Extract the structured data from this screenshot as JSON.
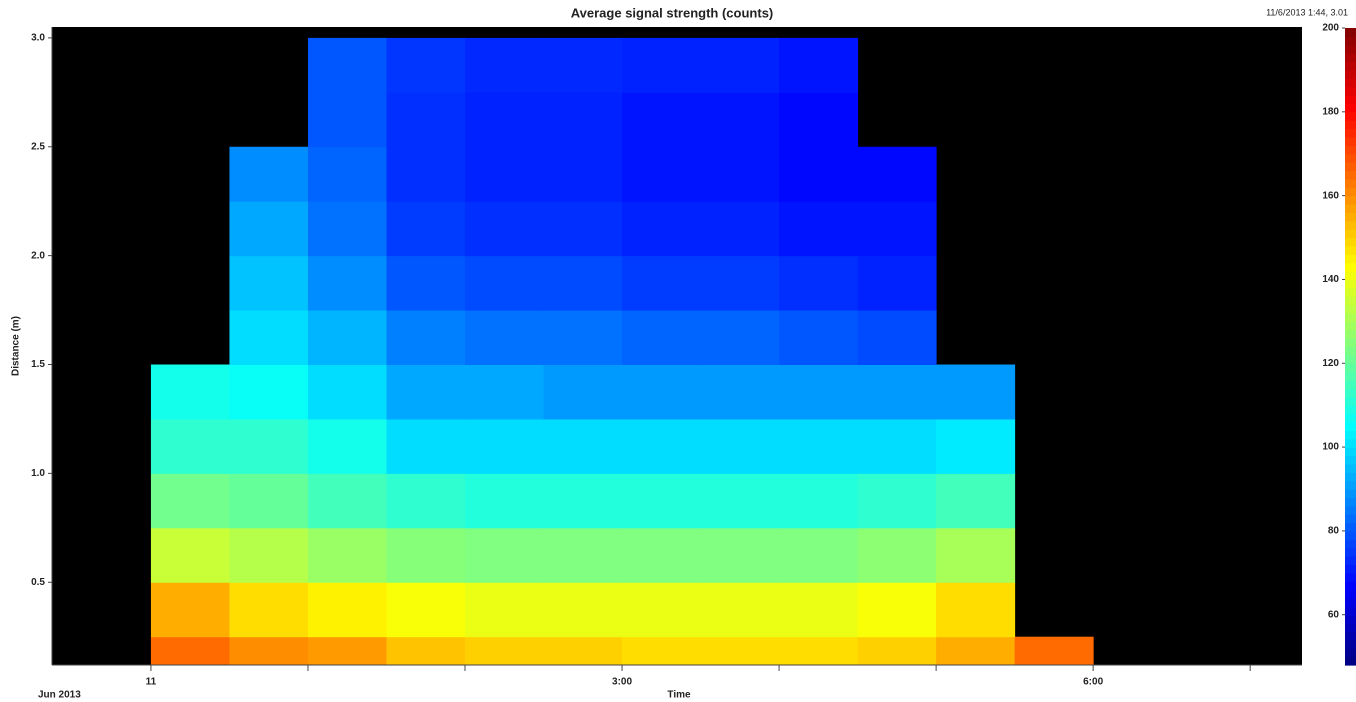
{
  "chart_data": {
    "type": "heatmap",
    "title": "Average signal strength (counts)",
    "annotation": "11/6/2013 1:44, 3.01",
    "x_label": "Time",
    "x_sublabel": "Jun 2013",
    "y_label": "Distance (m)",
    "xlim": [
      -0.63,
      7.33
    ],
    "xticks": [
      {
        "value": 0,
        "label": "11"
      },
      {
        "value": 3,
        "label": "3:00"
      },
      {
        "value": 6,
        "label": "6:00"
      }
    ],
    "xminorticks": [
      1,
      2,
      4,
      5,
      7
    ],
    "ylim": [
      0.12,
      3.05
    ],
    "yticks": [
      0.5,
      {
        "value": 1,
        "label": "1.0"
      },
      1.5,
      {
        "value": 2,
        "label": "2.0"
      },
      2.5,
      {
        "value": 3,
        "label": "3.0"
      }
    ],
    "x_edges": [
      -0.5,
      0,
      0.5,
      1,
      1.5,
      2,
      2.5,
      3,
      3.5,
      4,
      4.5,
      5,
      5.5,
      6,
      6.5,
      7
    ],
    "y_edges": [
      0.12,
      0.25,
      0.5,
      0.75,
      1,
      1.25,
      1.5,
      1.75,
      2,
      2.25,
      2.5,
      2.75,
      3
    ],
    "z": [
      [
        null,
        165,
        160,
        158,
        152,
        150,
        150,
        148,
        148,
        148,
        150,
        155,
        165,
        null,
        null
      ],
      [
        null,
        155,
        148,
        145,
        142,
        140,
        140,
        140,
        140,
        140,
        142,
        148,
        null,
        null,
        null
      ],
      [
        null,
        135,
        132,
        128,
        125,
        124,
        124,
        124,
        124,
        124,
        126,
        130,
        null,
        null,
        null
      ],
      [
        null,
        122,
        120,
        115,
        112,
        110,
        110,
        110,
        110,
        110,
        112,
        115,
        null,
        null,
        null
      ],
      [
        null,
        112,
        112,
        108,
        100,
        100,
        100,
        100,
        100,
        100,
        100,
        102,
        null,
        null,
        null
      ],
      [
        null,
        108,
        106,
        100,
        92,
        92,
        90,
        90,
        90,
        90,
        90,
        90,
        null,
        null,
        null
      ],
      [
        null,
        null,
        100,
        94,
        86,
        84,
        84,
        82,
        82,
        80,
        78,
        null,
        null,
        null,
        null
      ],
      [
        null,
        null,
        96,
        88,
        80,
        78,
        78,
        76,
        76,
        74,
        72,
        null,
        null,
        null,
        null
      ],
      [
        null,
        null,
        92,
        84,
        76,
        74,
        74,
        72,
        72,
        70,
        70,
        null,
        null,
        null,
        null
      ],
      [
        null,
        null,
        88,
        82,
        74,
        72,
        72,
        70,
        70,
        68,
        68,
        null,
        null,
        null,
        null
      ],
      [
        null,
        null,
        null,
        80,
        74,
        72,
        72,
        70,
        70,
        68,
        null,
        null,
        null,
        null,
        null
      ],
      [
        null,
        null,
        null,
        80,
        75,
        73,
        73,
        72,
        72,
        70,
        null,
        null,
        null,
        null,
        null
      ]
    ],
    "colormap": "jet",
    "zlim": [
      48,
      200
    ],
    "zticks": [
      60,
      80,
      100,
      120,
      140,
      160,
      180,
      200
    ],
    "background": "#000000"
  }
}
